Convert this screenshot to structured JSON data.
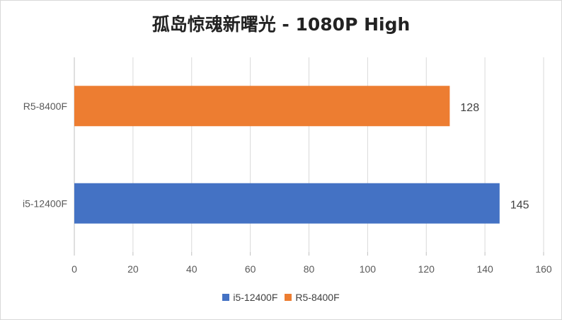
{
  "chart_data": {
    "type": "bar",
    "orientation": "horizontal",
    "title": "孤岛惊魂新曙光 - 1080P High",
    "categories": [
      "R5-8400F",
      "i5-12400F"
    ],
    "series": [
      {
        "name": "i5-12400F",
        "category": "i5-12400F",
        "value": 145,
        "color": "#4472c4"
      },
      {
        "name": "R5-8400F",
        "category": "R5-8400F",
        "value": 128,
        "color": "#ed7d31"
      }
    ],
    "xlim": [
      0,
      160
    ],
    "xticks": [
      0,
      20,
      40,
      60,
      80,
      100,
      120,
      140,
      160
    ],
    "grid": true,
    "legend_position": "bottom"
  }
}
